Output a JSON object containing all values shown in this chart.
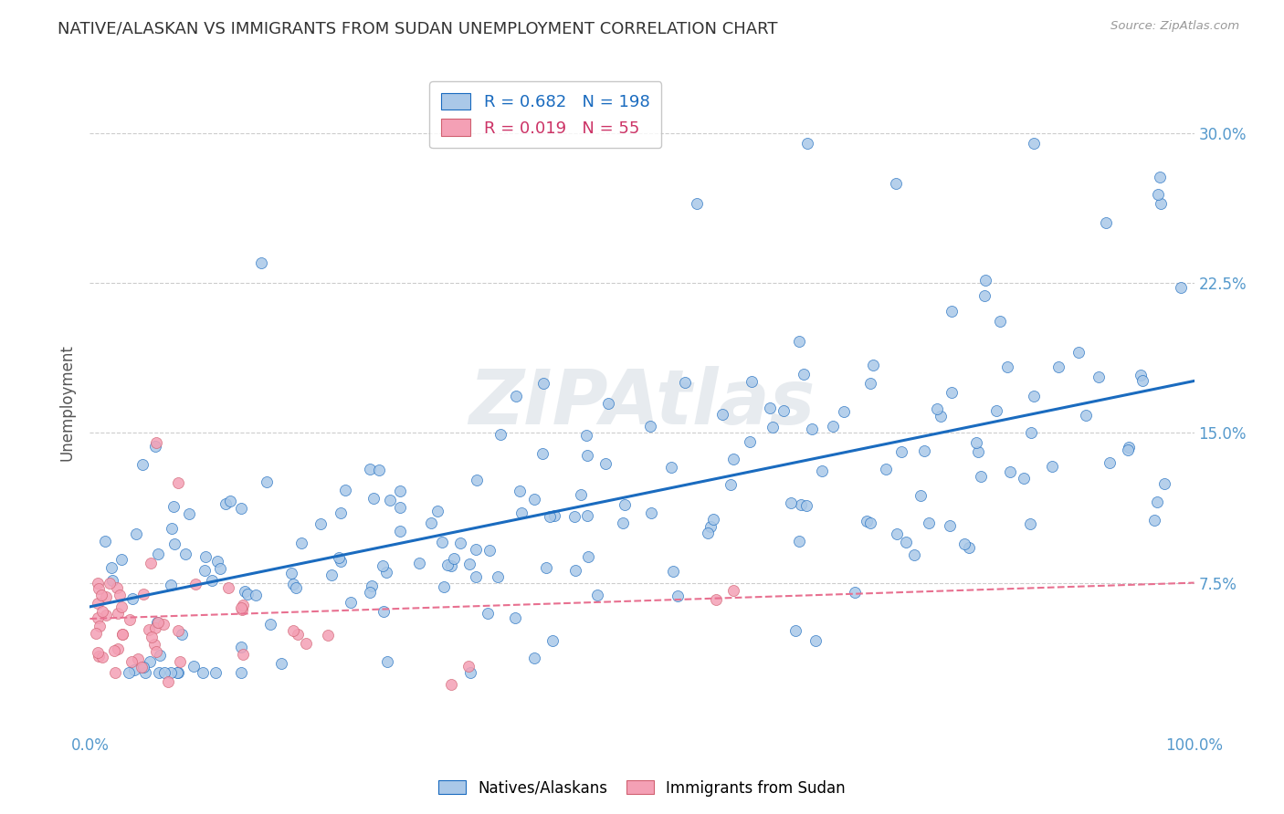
{
  "title": "NATIVE/ALASKAN VS IMMIGRANTS FROM SUDAN UNEMPLOYMENT CORRELATION CHART",
  "source": "Source: ZipAtlas.com",
  "ylabel": "Unemployment",
  "xlim": [
    0,
    1.0
  ],
  "ylim": [
    0,
    0.33
  ],
  "xticks": [
    0.0,
    0.25,
    0.5,
    0.75,
    1.0
  ],
  "xtick_labels": [
    "0.0%",
    "",
    "",
    "",
    "100.0%"
  ],
  "yticks": [
    0.075,
    0.15,
    0.225,
    0.3
  ],
  "ytick_labels": [
    "7.5%",
    "15.0%",
    "22.5%",
    "30.0%"
  ],
  "blue_R": 0.682,
  "blue_N": 198,
  "pink_R": 0.019,
  "pink_N": 55,
  "blue_color": "#aac8e8",
  "pink_color": "#f4a0b5",
  "blue_line_color": "#1a6bbf",
  "pink_line_color": "#e87090",
  "legend_label_blue": "Natives/Alaskans",
  "legend_label_pink": "Immigrants from Sudan",
  "watermark": "ZIPAtlas",
  "background_color": "#ffffff",
  "grid_color": "#cccccc",
  "title_color": "#333333",
  "title_fontsize": 13,
  "axis_label_color": "#5599cc"
}
